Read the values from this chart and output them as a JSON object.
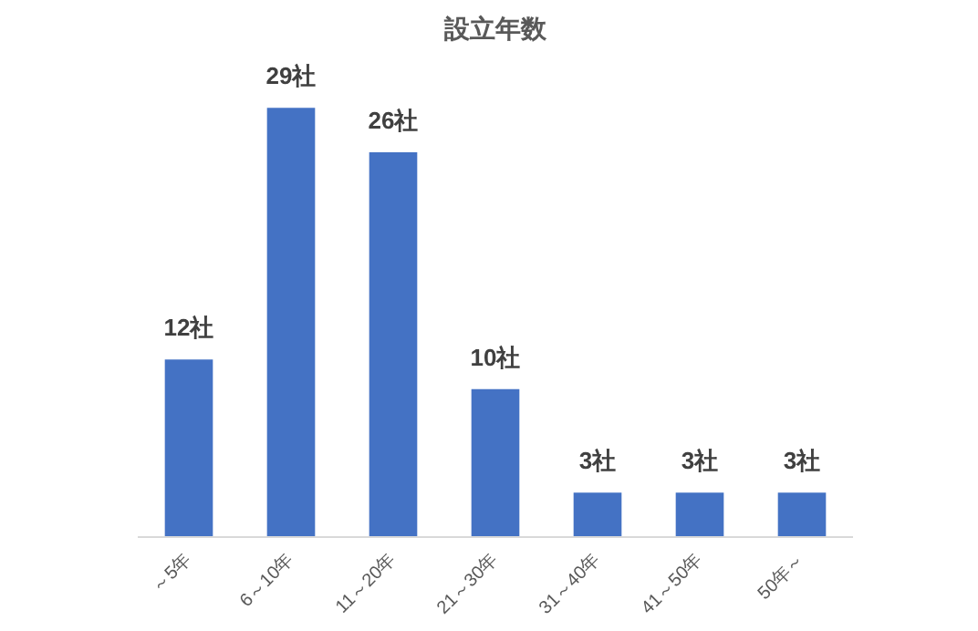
{
  "chart_data": {
    "type": "bar",
    "title": "設立年数",
    "categories": [
      "～5年",
      "6～10年",
      "11～20年",
      "21～30年",
      "31～40年",
      "41～50年",
      "50年～"
    ],
    "values": [
      12,
      29,
      26,
      10,
      3,
      3,
      3
    ],
    "value_labels": [
      "12社",
      "29社",
      "26社",
      "10社",
      "3社",
      "3社",
      "3社"
    ],
    "color": "#4472c4"
  }
}
